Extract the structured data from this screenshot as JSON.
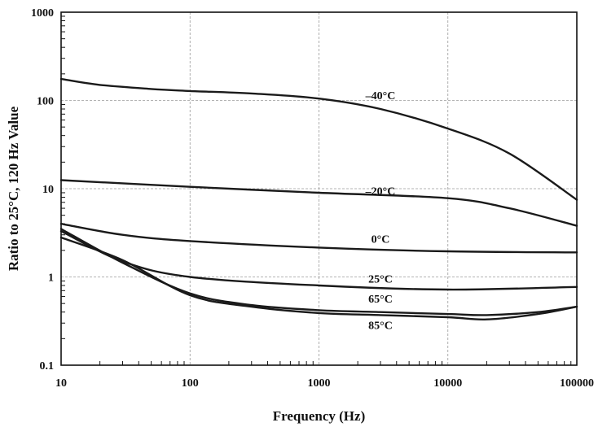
{
  "chart_data": {
    "type": "line",
    "title": "",
    "xlabel": "Frequency (Hz)",
    "ylabel": "Ratio to 25°C, 120 Hz Value",
    "x_scale": "log",
    "y_scale": "log",
    "xlim": [
      10,
      100000
    ],
    "ylim": [
      0.1,
      1000
    ],
    "x_ticks": [
      "10",
      "100",
      "1000",
      "10000",
      "100000"
    ],
    "y_ticks": [
      "0.1",
      "1",
      "10",
      "100",
      "1000"
    ],
    "grid": true,
    "series": [
      {
        "name": "–40°C",
        "x": [
          10,
          20,
          50,
          100,
          300,
          1000,
          3000,
          10000,
          30000,
          100000
        ],
        "y": [
          175,
          150,
          135,
          128,
          120,
          105,
          80,
          48,
          25,
          7.5
        ]
      },
      {
        "name": "–20°C",
        "x": [
          10,
          100,
          1000,
          10000,
          30000,
          100000
        ],
        "y": [
          12.5,
          10.5,
          9.0,
          7.8,
          6.0,
          3.8
        ]
      },
      {
        "name": "0°C",
        "x": [
          10,
          30,
          100,
          1000,
          10000,
          100000
        ],
        "y": [
          4.0,
          3.0,
          2.55,
          2.15,
          1.95,
          1.9
        ]
      },
      {
        "name": "25°C",
        "x": [
          10,
          30,
          100,
          1000,
          10000,
          100000
        ],
        "y": [
          3.3,
          1.5,
          1.0,
          0.8,
          0.72,
          0.77
        ]
      },
      {
        "name": "65°C",
        "x": [
          10,
          30,
          100,
          300,
          1000,
          3000,
          10000,
          20000,
          50000,
          100000
        ],
        "y": [
          3.5,
          1.45,
          0.65,
          0.48,
          0.42,
          0.4,
          0.38,
          0.37,
          0.4,
          0.46
        ]
      },
      {
        "name": "85°C",
        "x": [
          10,
          30,
          100,
          300,
          1000,
          3000,
          10000,
          20000,
          50000,
          100000
        ],
        "y": [
          2.8,
          1.55,
          0.62,
          0.46,
          0.39,
          0.37,
          0.35,
          0.33,
          0.38,
          0.46
        ]
      }
    ]
  }
}
